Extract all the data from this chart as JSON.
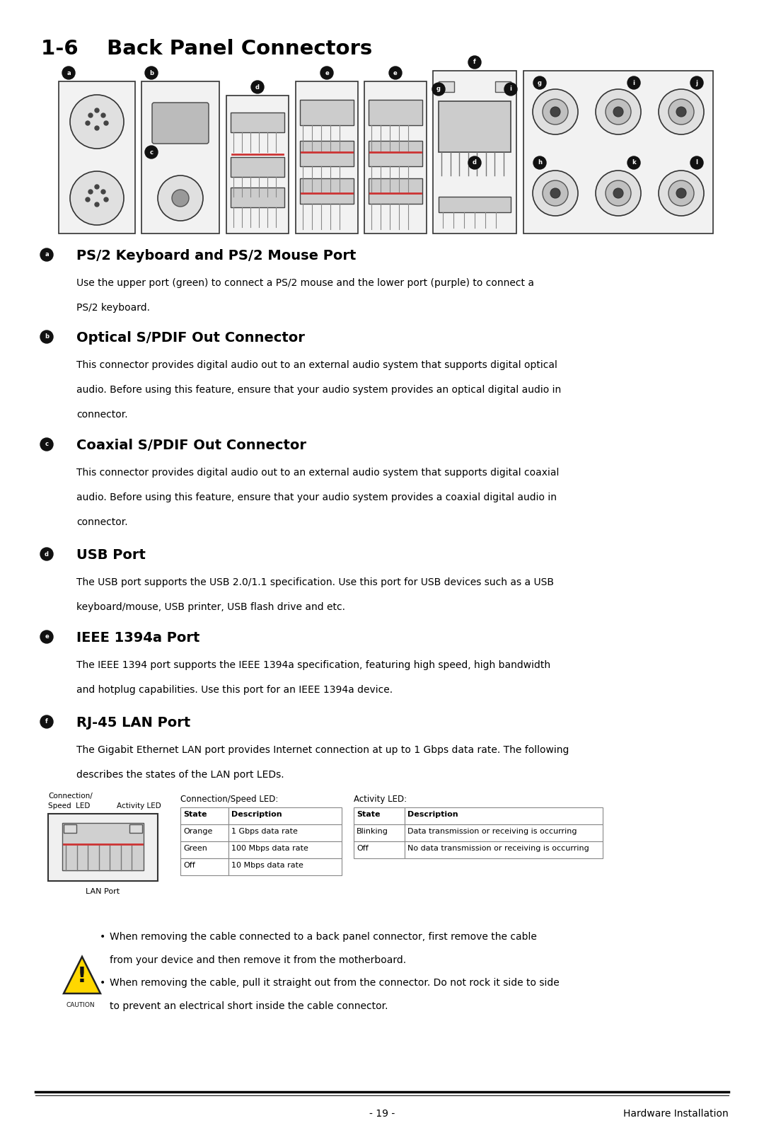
{
  "title": "1-6    Back Panel Connectors",
  "bg_color": "#ffffff",
  "text_color": "#000000",
  "page_number": "- 19 -",
  "page_label": "Hardware Installation",
  "sections": [
    {
      "icon": "a",
      "heading": "PS/2 Keyboard and PS/2 Mouse Port",
      "body": [
        "Use the upper port (green) to connect a PS/2 mouse and the lower port (purple) to connect a",
        "PS/2 keyboard."
      ]
    },
    {
      "icon": "b",
      "heading": "Optical S/PDIF Out Connector",
      "body": [
        "This connector provides digital audio out to an external audio system that supports digital optical",
        "audio. Before using this feature, ensure that your audio system provides an optical digital audio in",
        "connector."
      ]
    },
    {
      "icon": "c",
      "heading": "Coaxial S/PDIF Out Connector",
      "body": [
        "This connector provides digital audio out to an external audio system that supports digital coaxial",
        "audio. Before using this feature, ensure that your audio system provides a coaxial digital audio in",
        "connector."
      ]
    },
    {
      "icon": "d",
      "heading": "USB Port",
      "body": [
        "The USB port supports the USB 2.0/1.1 specification. Use this port for USB devices such as a USB",
        "keyboard/mouse, USB printer, USB flash drive and etc."
      ]
    },
    {
      "icon": "e",
      "heading": "IEEE 1394a Port",
      "body": [
        "The IEEE 1394 port supports the IEEE 1394a specification, featuring high speed, high bandwidth",
        "and hotplug capabilities. Use this port for an IEEE 1394a device."
      ]
    },
    {
      "icon": "f",
      "heading": "RJ-45 LAN Port",
      "body": [
        "The Gigabit Ethernet LAN port provides Internet connection at up to 1 Gbps data rate. The following",
        "describes the states of the LAN port LEDs."
      ]
    }
  ],
  "led_table_speed_label": "Connection/Speed LED:",
  "led_table_speed_headers": [
    "State",
    "Description"
  ],
  "led_table_speed_rows": [
    [
      "Orange",
      "1 Gbps data rate"
    ],
    [
      "Green",
      "100 Mbps data rate"
    ],
    [
      "Off",
      "10 Mbps data rate"
    ]
  ],
  "led_table_activity_label": "Activity LED:",
  "led_table_activity_headers": [
    "State",
    "Description"
  ],
  "led_table_activity_rows": [
    [
      "Blinking",
      "Data transmission or receiving is occurring"
    ],
    [
      "Off",
      "No data transmission or receiving is occurring"
    ]
  ],
  "caution_bullet1_line1": "When removing the cable connected to a back panel connector, first remove the cable",
  "caution_bullet1_line2": "from your device and then remove it from the motherboard.",
  "caution_bullet2_line1": "When removing the cable, pull it straight out from the connector. Do not rock it side to side",
  "caution_bullet2_line2": "to prevent an electrical short inside the cable connector."
}
